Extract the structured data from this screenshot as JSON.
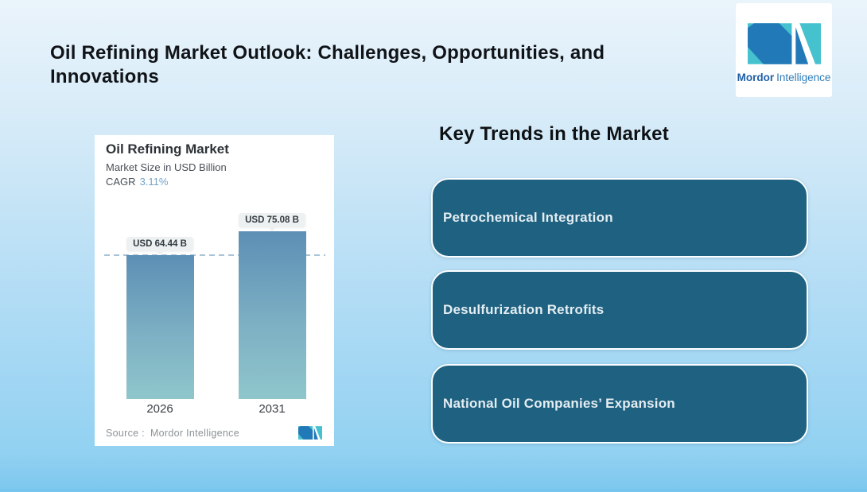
{
  "header": {
    "title": "Oil Refining Market Outlook: Challenges, Opportunities, and Innovations",
    "brand_bold": "Mordor",
    "brand_regular": "Intelligence"
  },
  "brand_colors": {
    "teal": "#45C2CE",
    "blue": "#2279B8"
  },
  "chart_data": {
    "type": "bar",
    "title": "Oil Refining Market",
    "subtitle": "Market Size in USD Billion",
    "cagr_label": "CAGR",
    "cagr_value": "3.11%",
    "categories": [
      "2026",
      "2031"
    ],
    "values": [
      64.44,
      75.08
    ],
    "value_labels": [
      "USD 64.44 B",
      "USD 75.08 B"
    ],
    "unit": "USD Billion",
    "ylim": [
      0,
      85
    ],
    "grid": false,
    "legend": "none",
    "reference_line": {
      "value": 64.44,
      "style": "dashed",
      "color": "#A9C3D7"
    },
    "colors": {
      "bar_gradient_top": "#5C8FB5",
      "bar_gradient_bottom": "#8FC6CC",
      "cagr_value": "#74A3C7",
      "badge_bg": "#EEF1F2"
    },
    "source_label": "Source :",
    "source_value": "Mordor Intelligence"
  },
  "key_trends": {
    "heading": "Key Trends in the Market",
    "card_color": "#1E6180",
    "items": [
      {
        "label": "Petrochemical Integration"
      },
      {
        "label": "Desulfurization Retrofits"
      },
      {
        "label": "National Oil Companies’ Expansion"
      }
    ]
  }
}
